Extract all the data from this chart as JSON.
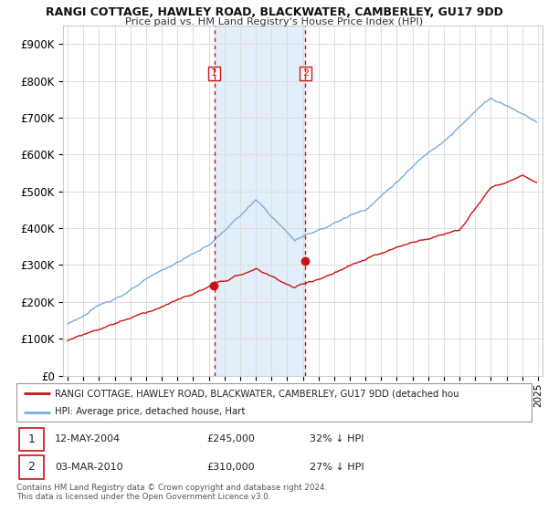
{
  "title1": "RANGI COTTAGE, HAWLEY ROAD, BLACKWATER, CAMBERLEY, GU17 9DD",
  "title2": "Price paid vs. HM Land Registry's House Price Index (HPI)",
  "background_color": "#ffffff",
  "plot_bg_color": "#ffffff",
  "grid_color": "#dddddd",
  "hpi_color": "#7aacdc",
  "price_color": "#cc1111",
  "vline_color": "#cc1111",
  "sale1_date": 2004.36,
  "sale2_date": 2010.17,
  "sale1_price": 245000,
  "sale2_price": 310000,
  "legend_line1": "RANGI COTTAGE, HAWLEY ROAD, BLACKWATER, CAMBERLEY, GU17 9DD (detached hou",
  "legend_line2": "HPI: Average price, detached house, Hart",
  "table_row1": [
    "1",
    "12-MAY-2004",
    "£245,000",
    "32% ↓ HPI"
  ],
  "table_row2": [
    "2",
    "03-MAR-2010",
    "£310,000",
    "27% ↓ HPI"
  ],
  "footnote1": "Contains HM Land Registry data © Crown copyright and database right 2024.",
  "footnote2": "This data is licensed under the Open Government Licence v3.0.",
  "ylim_max": 950000,
  "xmin": 1994.7,
  "xmax": 2025.3
}
